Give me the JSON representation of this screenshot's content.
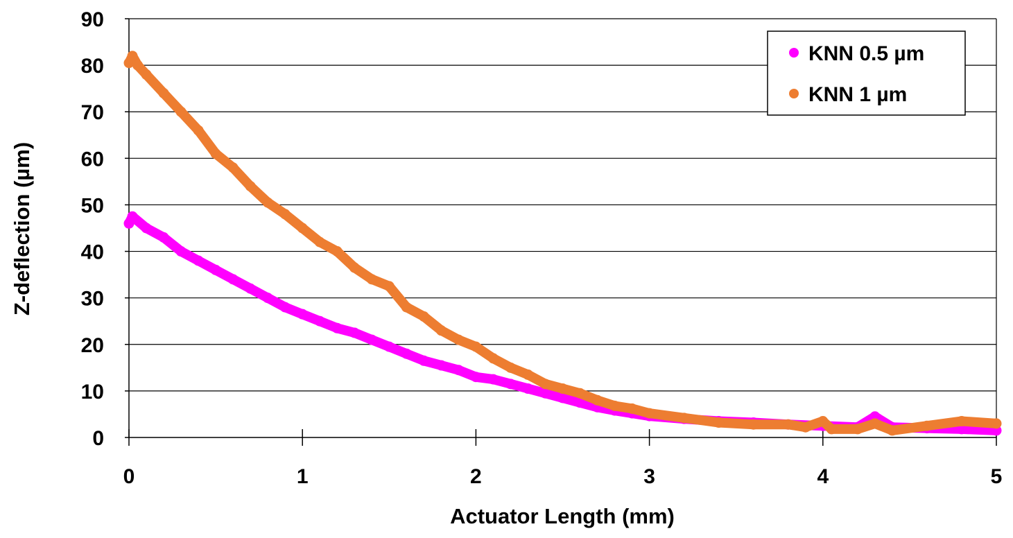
{
  "chart_data": {
    "type": "scatter",
    "xlabel": "Actuator Length (mm)",
    "ylabel": "Z-deflection (µm)",
    "xlim": [
      0,
      5
    ],
    "ylim": [
      0,
      90
    ],
    "x_ticks": [
      0,
      1,
      2,
      3,
      4,
      5
    ],
    "y_ticks": [
      0,
      10,
      20,
      30,
      40,
      50,
      60,
      70,
      80,
      90
    ],
    "grid": "horizontal",
    "legend_position": "top-right",
    "series": [
      {
        "name": "KNN 0.5 µm",
        "color": "#ff00ff",
        "points": [
          [
            0.0,
            46.0
          ],
          [
            0.02,
            47.5
          ],
          [
            0.1,
            45.0
          ],
          [
            0.2,
            43.0
          ],
          [
            0.3,
            40.0
          ],
          [
            0.4,
            38.0
          ],
          [
            0.5,
            36.0
          ],
          [
            0.6,
            34.0
          ],
          [
            0.7,
            32.0
          ],
          [
            0.8,
            30.0
          ],
          [
            0.9,
            28.0
          ],
          [
            1.0,
            26.5
          ],
          [
            1.1,
            25.0
          ],
          [
            1.2,
            23.5
          ],
          [
            1.3,
            22.5
          ],
          [
            1.4,
            21.0
          ],
          [
            1.5,
            19.5
          ],
          [
            1.6,
            18.0
          ],
          [
            1.7,
            16.5
          ],
          [
            1.8,
            15.5
          ],
          [
            1.9,
            14.5
          ],
          [
            2.0,
            13.0
          ],
          [
            2.1,
            12.5
          ],
          [
            2.2,
            11.5
          ],
          [
            2.3,
            10.5
          ],
          [
            2.4,
            9.5
          ],
          [
            2.5,
            8.5
          ],
          [
            2.6,
            7.5
          ],
          [
            2.7,
            6.5
          ],
          [
            2.8,
            5.8
          ],
          [
            2.9,
            5.2
          ],
          [
            3.0,
            4.6
          ],
          [
            3.2,
            4.0
          ],
          [
            3.4,
            3.5
          ],
          [
            3.6,
            3.2
          ],
          [
            3.8,
            2.8
          ],
          [
            4.0,
            2.5
          ],
          [
            4.2,
            2.2
          ],
          [
            4.3,
            4.5
          ],
          [
            4.4,
            2.2
          ],
          [
            4.6,
            2.0
          ],
          [
            4.8,
            1.8
          ],
          [
            5.0,
            1.5
          ]
        ]
      },
      {
        "name": "KNN 1 µm",
        "color": "#ed7d31",
        "points": [
          [
            0.0,
            80.5
          ],
          [
            0.02,
            82.0
          ],
          [
            0.05,
            80.0
          ],
          [
            0.1,
            78.0
          ],
          [
            0.2,
            74.0
          ],
          [
            0.3,
            70.0
          ],
          [
            0.4,
            66.0
          ],
          [
            0.5,
            61.0
          ],
          [
            0.6,
            58.0
          ],
          [
            0.7,
            54.0
          ],
          [
            0.8,
            50.5
          ],
          [
            0.9,
            48.0
          ],
          [
            1.0,
            45.0
          ],
          [
            1.1,
            42.0
          ],
          [
            1.2,
            40.0
          ],
          [
            1.3,
            36.5
          ],
          [
            1.4,
            34.0
          ],
          [
            1.5,
            32.5
          ],
          [
            1.6,
            28.0
          ],
          [
            1.7,
            26.0
          ],
          [
            1.8,
            23.0
          ],
          [
            1.9,
            21.0
          ],
          [
            2.0,
            19.5
          ],
          [
            2.1,
            17.0
          ],
          [
            2.2,
            15.0
          ],
          [
            2.3,
            13.5
          ],
          [
            2.4,
            11.5
          ],
          [
            2.5,
            10.5
          ],
          [
            2.6,
            9.5
          ],
          [
            2.7,
            8.0
          ],
          [
            2.8,
            6.8
          ],
          [
            2.9,
            6.2
          ],
          [
            3.0,
            5.2
          ],
          [
            3.2,
            4.2
          ],
          [
            3.4,
            3.2
          ],
          [
            3.6,
            2.8
          ],
          [
            3.8,
            2.8
          ],
          [
            3.9,
            2.2
          ],
          [
            4.0,
            3.5
          ],
          [
            4.05,
            1.8
          ],
          [
            4.2,
            1.8
          ],
          [
            4.3,
            3.0
          ],
          [
            4.4,
            1.5
          ],
          [
            4.6,
            2.5
          ],
          [
            4.8,
            3.5
          ],
          [
            5.0,
            3.0
          ]
        ]
      }
    ]
  }
}
